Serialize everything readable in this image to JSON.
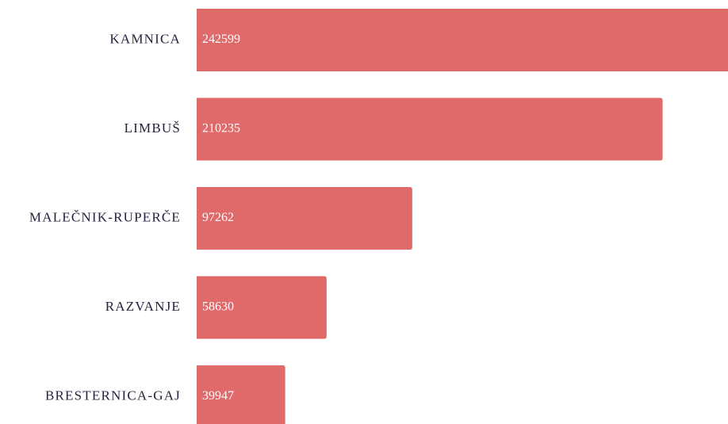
{
  "chart_data": {
    "type": "bar",
    "orientation": "horizontal",
    "categories": [
      "KAMNICA",
      "LIMBUŠ",
      "MALEČNIK-RUPERČE",
      "RAZVANJE",
      "BRESTERNICA-GAJ"
    ],
    "values": [
      242599,
      210235,
      97262,
      58630,
      39947
    ],
    "color": "#e06a6a"
  }
}
